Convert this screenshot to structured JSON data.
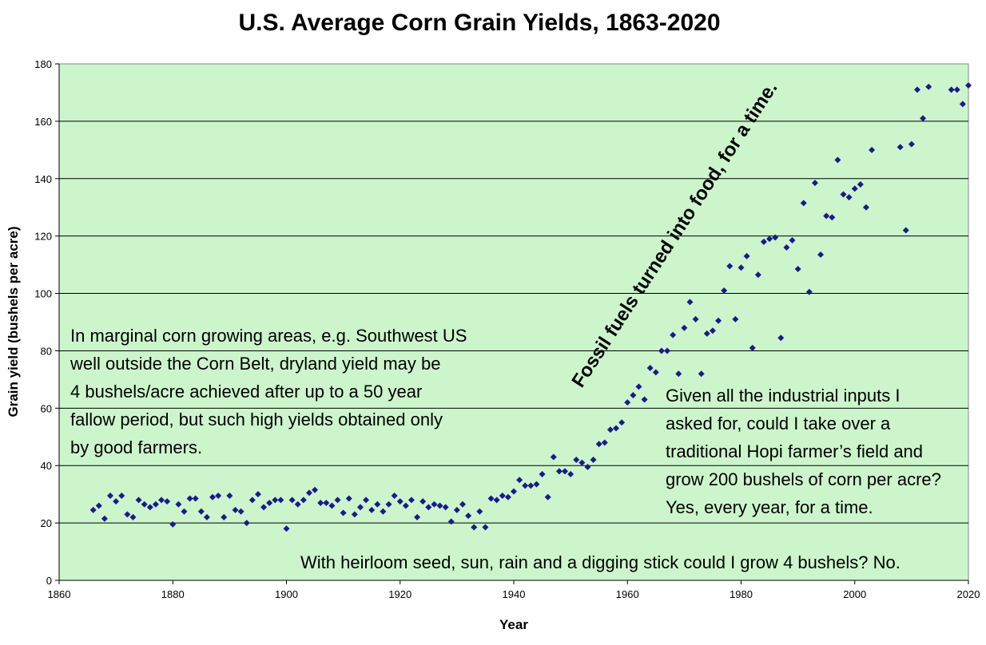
{
  "chart_data": {
    "type": "scatter",
    "title": "U.S. Average Corn Grain Yields, 1863-2020",
    "xlabel": "Year",
    "ylabel": "Grain yield (bushels per acre)",
    "xlim": [
      1860,
      2020
    ],
    "ylim": [
      0,
      180
    ],
    "xticks": [
      "1860",
      "1880",
      "1900",
      "1920",
      "1940",
      "1960",
      "1980",
      "2000",
      "2020"
    ],
    "yticks": [
      "0",
      "20",
      "40",
      "60",
      "80",
      "100",
      "120",
      "140",
      "160",
      "180"
    ],
    "grid": "horizontal",
    "marker_color": "#1a1a8c",
    "plot_background": "#ccf5cc",
    "points": [
      [
        1866,
        24.5
      ],
      [
        1867,
        26
      ],
      [
        1868,
        21.5
      ],
      [
        1869,
        29.5
      ],
      [
        1870,
        27.5
      ],
      [
        1871,
        29.5
      ],
      [
        1872,
        23
      ],
      [
        1873,
        22
      ],
      [
        1874,
        28
      ],
      [
        1875,
        26.5
      ],
      [
        1876,
        25.5
      ],
      [
        1877,
        26.5
      ],
      [
        1878,
        28
      ],
      [
        1879,
        27.5
      ],
      [
        1880,
        19.5
      ],
      [
        1881,
        26.5
      ],
      [
        1882,
        24
      ],
      [
        1883,
        28.5
      ],
      [
        1884,
        28.5
      ],
      [
        1885,
        24
      ],
      [
        1886,
        22
      ],
      [
        1887,
        29
      ],
      [
        1888,
        29.5
      ],
      [
        1889,
        22
      ],
      [
        1890,
        29.5
      ],
      [
        1891,
        24.5
      ],
      [
        1892,
        24
      ],
      [
        1893,
        20
      ],
      [
        1894,
        28
      ],
      [
        1895,
        30
      ],
      [
        1896,
        25.5
      ],
      [
        1897,
        27
      ],
      [
        1898,
        28
      ],
      [
        1899,
        28
      ],
      [
        1900,
        18
      ],
      [
        1901,
        28
      ],
      [
        1902,
        26.5
      ],
      [
        1903,
        28
      ],
      [
        1904,
        30.5
      ],
      [
        1905,
        31.5
      ],
      [
        1906,
        27
      ],
      [
        1907,
        27
      ],
      [
        1908,
        26
      ],
      [
        1909,
        28
      ],
      [
        1910,
        23.5
      ],
      [
        1911,
        28.5
      ],
      [
        1912,
        23
      ],
      [
        1913,
        25.5
      ],
      [
        1914,
        28
      ],
      [
        1915,
        24.5
      ],
      [
        1916,
        26.5
      ],
      [
        1917,
        24
      ],
      [
        1918,
        26.5
      ],
      [
        1919,
        29.5
      ],
      [
        1920,
        27.5
      ],
      [
        1921,
        26
      ],
      [
        1922,
        28
      ],
      [
        1923,
        22
      ],
      [
        1924,
        27.5
      ],
      [
        1925,
        25.5
      ],
      [
        1926,
        26.5
      ],
      [
        1927,
        26
      ],
      [
        1928,
        25.5
      ],
      [
        1929,
        20.5
      ],
      [
        1930,
        24.5
      ],
      [
        1931,
        26.5
      ],
      [
        1932,
        22.5
      ],
      [
        1933,
        18.5
      ],
      [
        1934,
        24
      ],
      [
        1935,
        18.5
      ],
      [
        1936,
        28.5
      ],
      [
        1937,
        28
      ],
      [
        1938,
        29.5
      ],
      [
        1939,
        29
      ],
      [
        1940,
        31
      ],
      [
        1941,
        35
      ],
      [
        1942,
        33
      ],
      [
        1943,
        33
      ],
      [
        1944,
        33.5
      ],
      [
        1945,
        37
      ],
      [
        1946,
        29
      ],
      [
        1947,
        43
      ],
      [
        1948,
        38
      ],
      [
        1949,
        38
      ],
      [
        1950,
        37
      ],
      [
        1951,
        42
      ],
      [
        1952,
        41
      ],
      [
        1953,
        39.5
      ],
      [
        1954,
        42
      ],
      [
        1955,
        47.5
      ],
      [
        1956,
        48
      ],
      [
        1957,
        52.5
      ],
      [
        1958,
        53
      ],
      [
        1959,
        55
      ],
      [
        1960,
        62
      ],
      [
        1961,
        64.5
      ],
      [
        1962,
        67.5
      ],
      [
        1963,
        63
      ],
      [
        1964,
        74
      ],
      [
        1965,
        72.5
      ],
      [
        1966,
        80
      ],
      [
        1967,
        80
      ],
      [
        1968,
        85.5
      ],
      [
        1969,
        72
      ],
      [
        1970,
        88
      ],
      [
        1971,
        97
      ],
      [
        1972,
        91
      ],
      [
        1973,
        72
      ],
      [
        1974,
        86
      ],
      [
        1975,
        87
      ],
      [
        1976,
        90.5
      ],
      [
        1977,
        101
      ],
      [
        1978,
        109.5
      ],
      [
        1979,
        91
      ],
      [
        1980,
        109
      ],
      [
        1981,
        113
      ],
      [
        1982,
        81
      ],
      [
        1983,
        106.5
      ],
      [
        1984,
        118
      ],
      [
        1985,
        119
      ],
      [
        1986,
        119.5
      ],
      [
        1987,
        84.5
      ],
      [
        1988,
        116
      ],
      [
        1989,
        118.5
      ],
      [
        1990,
        108.5
      ],
      [
        1991,
        131.5
      ],
      [
        1992,
        100.5
      ],
      [
        1993,
        138.5
      ],
      [
        1994,
        113.5
      ],
      [
        1995,
        127
      ],
      [
        1996,
        126.5
      ],
      [
        1997,
        146.5
      ],
      [
        1998,
        134.5
      ],
      [
        1999,
        133.5
      ],
      [
        2000,
        136.5
      ],
      [
        2001,
        138
      ],
      [
        2002,
        130
      ],
      [
        2003,
        150
      ],
      [
        2008,
        151
      ],
      [
        2009,
        122
      ],
      [
        2010,
        152
      ],
      [
        2011,
        171
      ],
      [
        2012,
        161
      ],
      [
        2013,
        172
      ],
      [
        2017,
        171
      ],
      [
        2018,
        171
      ],
      [
        2019,
        166
      ],
      [
        2020,
        172.5
      ]
    ],
    "annotations": {
      "marginal_lines": [
        "In marginal corn growing areas, e.g. Southwest US",
        "well outside the Corn Belt, dryland yield may be",
        "4 bushels/acre achieved after up to a 50 year",
        "fallow period, but such high yields obtained only",
        "by good farmers."
      ],
      "fossil": "Fossil fuels turned into food, for a time.",
      "industrial_lines": [
        "Given all the industrial inputs I",
        "asked for, could I take over a",
        "traditional Hopi farmer’s field and",
        "grow 200 bushels of corn per acre?",
        "Yes, every year, for a time."
      ],
      "heirloom": "With heirloom seed, sun, rain and a digging stick could I grow 4 bushels?  No."
    }
  }
}
